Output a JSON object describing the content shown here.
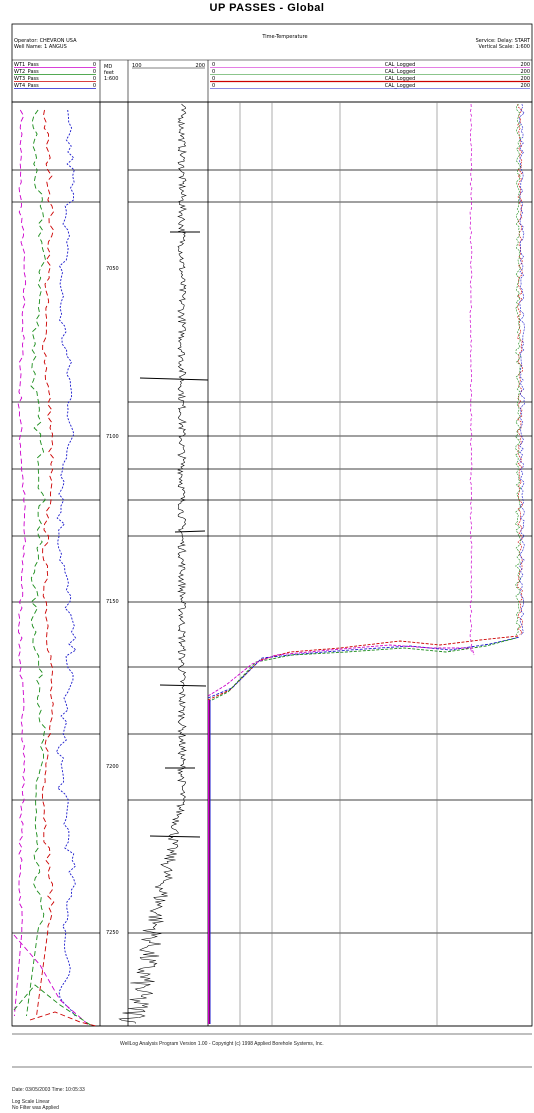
{
  "title": "UP PASSES - Global",
  "header": {
    "left_line1": "Operator: CHEVRON USA",
    "left_line2": "Well Name: 1 ANGUS",
    "center": "Time-Temperature",
    "right_line1": "Service: Delay: START",
    "right_line2": "Vertical Scale: 1:600"
  },
  "track1_curves": [
    {
      "label": "WT1_Pass",
      "value": "0",
      "color": "#cc00cc"
    },
    {
      "label": "WT2_Pass",
      "value": "0",
      "color": "#1a8c1a"
    },
    {
      "label": "WT3_Pass",
      "value": "0",
      "color": "#cc0000"
    },
    {
      "label": "WT4_Pass",
      "value": "0",
      "color": "#1a1acc"
    }
  ],
  "depth_header": [
    "MD",
    "feet",
    "1:600"
  ],
  "track2_header": {
    "left": "100",
    "right": "200"
  },
  "track3_curves": [
    {
      "min": "0",
      "label": "CAL_Logged",
      "max": "200",
      "color": "#cc00cc"
    },
    {
      "min": "0",
      "label": "CAL_Logged",
      "max": "200",
      "color": "#1a8c1a"
    },
    {
      "min": "0",
      "label": "CAL_Logged",
      "max": "200",
      "color": "#cc0000"
    },
    {
      "min": "0",
      "label": "CAL_Logged",
      "max": "200",
      "color": "#1a1acc"
    }
  ],
  "depth_labels": [
    "7050",
    "7100",
    "7150",
    "7200",
    "7250"
  ],
  "footer": {
    "copyright": "WellLog Analysis Program Version 1.00 - Copyright (c) 1998 Applied Borehole Systems, Inc.",
    "date_line": "Date: 03/05/2003 Time: 10:05:33",
    "note1": "Log Scale Linear",
    "note2": "No Filter was Applied"
  },
  "colors": {
    "magenta": "#cc00cc",
    "green": "#1a8c1a",
    "red": "#cc0000",
    "blue": "#1a1acc"
  }
}
